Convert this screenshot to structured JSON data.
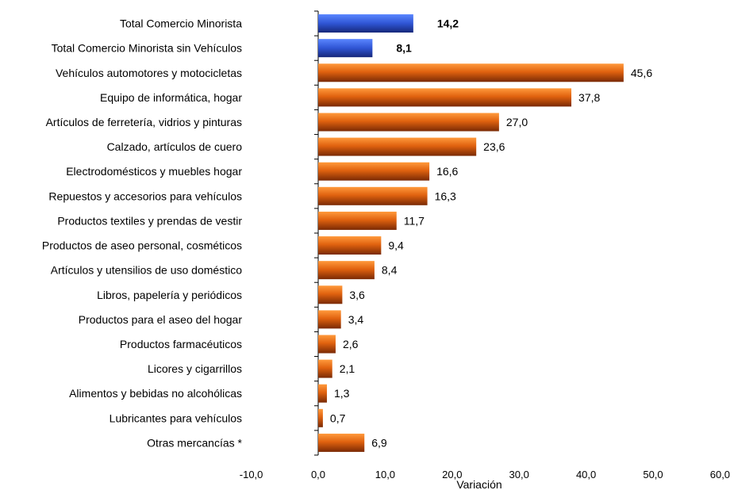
{
  "chart_data": {
    "type": "bar",
    "orientation": "horizontal",
    "categories": [
      "Total Comercio Minorista",
      "Total Comercio Minorista sin Vehículos",
      "Vehículos automotores y motocicletas",
      "Equipo de informática, hogar",
      "Artículos de ferretería, vidrios y pinturas",
      "Calzado, artículos de cuero",
      "Electrodomésticos y muebles hogar",
      "Repuestos y accesorios para vehículos",
      "Productos textiles y prendas de vestir",
      "Productos de aseo personal, cosméticos",
      "Artículos y utensilios de uso doméstico",
      "Libros, papelería y periódicos",
      "Productos para el aseo del  hogar",
      "Productos farmacéuticos",
      "Licores y cigarrillos",
      "Alimentos y bebidas no alcohólicas",
      "Lubricantes para vehículos",
      "Otras mercancías  *"
    ],
    "values": [
      14.2,
      8.1,
      45.6,
      37.8,
      27.0,
      23.6,
      16.6,
      16.3,
      11.7,
      9.4,
      8.4,
      3.6,
      3.4,
      2.6,
      2.1,
      1.3,
      0.7,
      6.9
    ],
    "value_labels": [
      "14,2",
      "8,1",
      "45,6",
      "37,8",
      "27,0",
      "23,6",
      "16,6",
      "16,3",
      "11,7",
      "9,4",
      "8,4",
      "3,6",
      "3,4",
      "2,6",
      "2,1",
      "1,3",
      "0,7",
      "6,9"
    ],
    "bar_colors": [
      "#2f55d4",
      "#2f55d4",
      "#e0620f",
      "#e0620f",
      "#e0620f",
      "#e0620f",
      "#e0620f",
      "#e0620f",
      "#e0620f",
      "#e0620f",
      "#e0620f",
      "#e0620f",
      "#e0620f",
      "#e0620f",
      "#e0620f",
      "#e0620f",
      "#e0620f",
      "#e0620f"
    ],
    "bold_labels": [
      true,
      true,
      false,
      false,
      false,
      false,
      false,
      false,
      false,
      false,
      false,
      false,
      false,
      false,
      false,
      false,
      false,
      false
    ],
    "xlim": [
      -10,
      60
    ],
    "x_ticks": [
      -10,
      0,
      10,
      20,
      30,
      40,
      50,
      60
    ],
    "x_tick_labels": [
      "-10,0",
      "0,0",
      "10,0",
      "20,0",
      "30,0",
      "40,0",
      "50,0",
      "60,0"
    ],
    "xlabel": "Variación",
    "title": "",
    "legend": "none",
    "grid": false
  }
}
